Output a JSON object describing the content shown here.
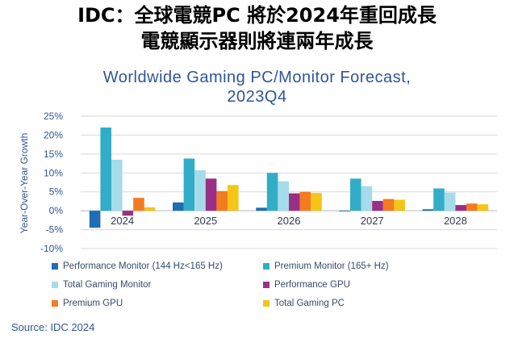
{
  "headline": {
    "line1": "IDC：全球電競PC 將於2024年重回成長",
    "line2": "電競顯示器則將連兩年成長"
  },
  "chart_data": {
    "type": "bar",
    "title_line1": "Worldwide Gaming PC/Monitor Forecast,",
    "title_line2": "2023Q4",
    "ylabel": "Year-Over-Year Growth",
    "xlabel": "",
    "ylim": [
      -10,
      25
    ],
    "yticks": [
      25,
      20,
      15,
      10,
      5,
      0,
      -5,
      -10
    ],
    "ytick_labels": [
      "25%",
      "20%",
      "15%",
      "10%",
      "5%",
      "0%",
      "-5%",
      "-10%"
    ],
    "categories": [
      "2024",
      "2025",
      "2026",
      "2027",
      "2028"
    ],
    "grid": true,
    "legend_position": "bottom",
    "series": [
      {
        "name": "Performance Monitor (144 Hz<165 Hz)",
        "color": "#1f6db5",
        "values": [
          -4.5,
          2.2,
          0.8,
          -0.2,
          0.4
        ]
      },
      {
        "name": "Premium Monitor (165+ Hz)",
        "color": "#32adc8",
        "values": [
          22.0,
          13.8,
          10.0,
          8.5,
          5.9
        ]
      },
      {
        "name": "Total Gaming Monitor",
        "color": "#a6dbe9",
        "values": [
          13.5,
          10.7,
          7.8,
          6.5,
          4.8
        ]
      },
      {
        "name": "Performance GPU",
        "color": "#9b2f87",
        "values": [
          -1.3,
          8.5,
          4.6,
          2.6,
          1.5
        ]
      },
      {
        "name": "Premium GPU",
        "color": "#f47b20",
        "values": [
          3.4,
          5.2,
          5.0,
          3.1,
          1.9
        ]
      },
      {
        "name": "Total Gaming PC",
        "color": "#f5c518",
        "values": [
          0.9,
          6.8,
          4.7,
          2.9,
          1.7
        ]
      }
    ]
  },
  "source": "Source: IDC 2024"
}
